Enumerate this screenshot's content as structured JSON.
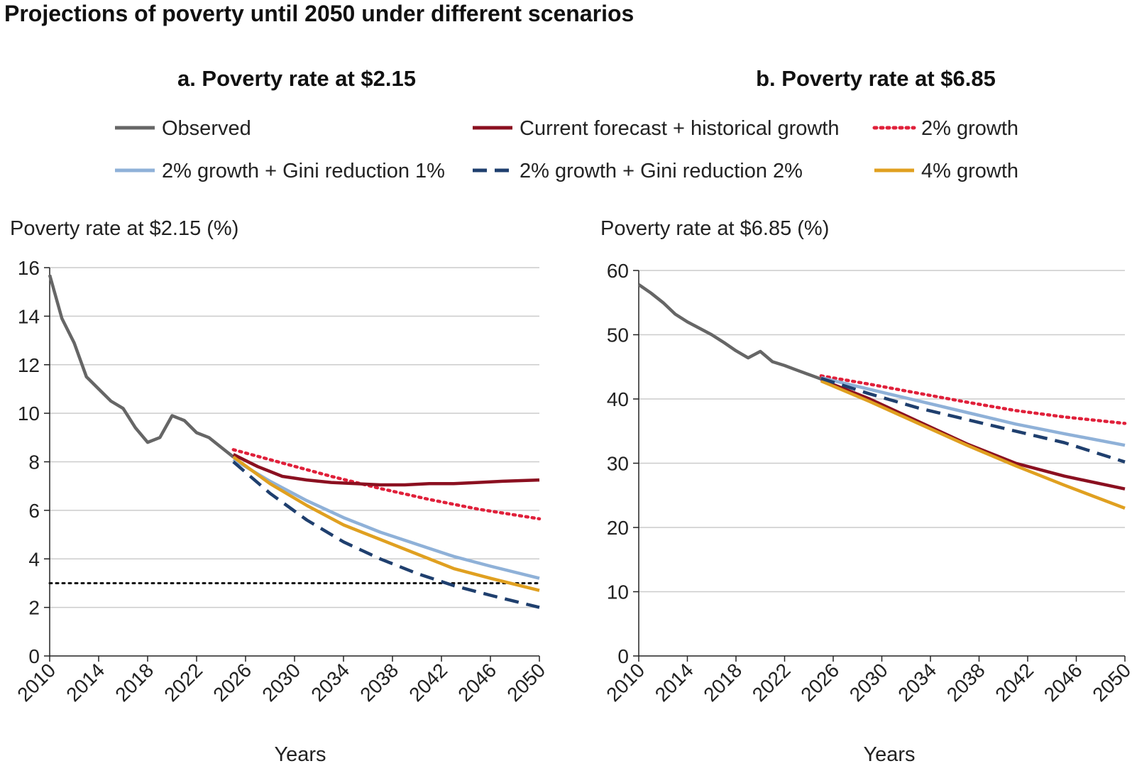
{
  "figure": {
    "title": "Projections of poverty until 2050 under different scenarios"
  },
  "legend": {
    "items": [
      {
        "key": "observed",
        "label": "Observed",
        "color": "#666666",
        "style": "solid"
      },
      {
        "key": "current",
        "label": "Current forecast + historical growth",
        "color": "#8b1020",
        "style": "solid"
      },
      {
        "key": "g2",
        "label": "2% growth",
        "color": "#e0203a",
        "style": "dotted"
      },
      {
        "key": "gini1",
        "label": "2% growth + Gini reduction 1%",
        "color": "#8fb1d8",
        "style": "solid"
      },
      {
        "key": "gini2",
        "label": "2% growth + Gini reduction 2%",
        "color": "#1f3f6e",
        "style": "dashed"
      },
      {
        "key": "g4",
        "label": "4% growth",
        "color": "#e0a020",
        "style": "solid"
      }
    ]
  },
  "chart_data": [
    {
      "type": "line",
      "title": "a. Poverty rate at $2.15",
      "ylabel": "Poverty rate at $2.15 (%)",
      "xlabel": "Years",
      "xlim": [
        2010,
        2050
      ],
      "ylim": [
        0,
        16
      ],
      "xticks": [
        "2010",
        "2014",
        "2018",
        "2022",
        "2026",
        "2030",
        "2034",
        "2038",
        "2042",
        "2046",
        "2050"
      ],
      "yticks": [
        "0",
        "2",
        "4",
        "6",
        "8",
        "10",
        "12",
        "14",
        "16"
      ],
      "grid": "horizontal",
      "reference_line": {
        "y": 3,
        "color": "#111111",
        "style": "dotted"
      },
      "series": [
        {
          "key": "observed",
          "name": "Observed",
          "x": [
            2010,
            2011,
            2012,
            2013,
            2014,
            2015,
            2016,
            2017,
            2018,
            2019,
            2020,
            2021,
            2022,
            2023,
            2024,
            2025
          ],
          "y": [
            15.7,
            13.9,
            12.9,
            11.5,
            11.0,
            10.5,
            10.2,
            9.4,
            8.8,
            9.0,
            9.9,
            9.7,
            9.2,
            9.0,
            8.6,
            8.2
          ]
        },
        {
          "key": "current",
          "name": "Current forecast + historical growth",
          "x": [
            2025,
            2027,
            2029,
            2031,
            2033,
            2035,
            2037,
            2039,
            2041,
            2043,
            2045,
            2047,
            2050
          ],
          "y": [
            8.3,
            7.8,
            7.4,
            7.25,
            7.15,
            7.1,
            7.05,
            7.05,
            7.1,
            7.1,
            7.15,
            7.2,
            7.25
          ]
        },
        {
          "key": "g2",
          "name": "2% growth",
          "x": [
            2025,
            2029,
            2033,
            2037,
            2041,
            2045,
            2050
          ],
          "y": [
            8.5,
            7.95,
            7.4,
            6.9,
            6.45,
            6.05,
            5.65
          ]
        },
        {
          "key": "gini1",
          "name": "2% growth + Gini reduction 1%",
          "x": [
            2025,
            2028,
            2031,
            2034,
            2037,
            2040,
            2043,
            2046,
            2050
          ],
          "y": [
            8.1,
            7.2,
            6.4,
            5.7,
            5.1,
            4.6,
            4.1,
            3.7,
            3.2
          ]
        },
        {
          "key": "gini2",
          "name": "2% growth + Gini reduction 2%",
          "x": [
            2025,
            2028,
            2031,
            2034,
            2037,
            2040,
            2043,
            2046,
            2050
          ],
          "y": [
            8.0,
            6.7,
            5.6,
            4.7,
            4.0,
            3.4,
            2.9,
            2.5,
            2.0
          ]
        },
        {
          "key": "g4",
          "name": "4% growth",
          "x": [
            2025,
            2028,
            2031,
            2034,
            2037,
            2040,
            2043,
            2046,
            2050
          ],
          "y": [
            8.2,
            7.1,
            6.2,
            5.4,
            4.8,
            4.2,
            3.6,
            3.2,
            2.7
          ]
        }
      ]
    },
    {
      "type": "line",
      "title": "b. Poverty rate at $6.85",
      "ylabel": "Poverty rate at $6.85 (%)",
      "xlabel": "Years",
      "xlim": [
        2010,
        2050
      ],
      "ylim": [
        0,
        60
      ],
      "xticks": [
        "2010",
        "2014",
        "2018",
        "2022",
        "2026",
        "2030",
        "2034",
        "2038",
        "2042",
        "2046",
        "2050"
      ],
      "yticks": [
        "0",
        "10",
        "20",
        "30",
        "40",
        "50",
        "60"
      ],
      "grid": "horizontal",
      "series": [
        {
          "key": "observed",
          "name": "Observed",
          "x": [
            2010,
            2011,
            2012,
            2013,
            2014,
            2015,
            2016,
            2017,
            2018,
            2019,
            2020,
            2021,
            2022,
            2023,
            2024,
            2025
          ],
          "y": [
            57.8,
            56.5,
            55.0,
            53.2,
            52.0,
            51.0,
            50.0,
            48.8,
            47.5,
            46.4,
            47.4,
            45.8,
            45.2,
            44.5,
            43.8,
            43.1
          ]
        },
        {
          "key": "current",
          "name": "Current forecast + historical growth",
          "x": [
            2025,
            2029,
            2033,
            2037,
            2041,
            2045,
            2050
          ],
          "y": [
            43.0,
            40.0,
            36.5,
            33.0,
            30.0,
            28.0,
            26.0
          ]
        },
        {
          "key": "g2",
          "name": "2% growth",
          "x": [
            2025,
            2029,
            2033,
            2037,
            2041,
            2045,
            2050
          ],
          "y": [
            43.6,
            42.3,
            40.9,
            39.5,
            38.2,
            37.2,
            36.2
          ]
        },
        {
          "key": "gini1",
          "name": "2% growth + Gini reduction 1%",
          "x": [
            2025,
            2029,
            2033,
            2037,
            2041,
            2045,
            2050
          ],
          "y": [
            43.3,
            41.5,
            39.7,
            37.9,
            36.1,
            34.6,
            32.8
          ]
        },
        {
          "key": "gini2",
          "name": "2% growth + Gini reduction 2%",
          "x": [
            2025,
            2029,
            2033,
            2037,
            2041,
            2045,
            2050
          ],
          "y": [
            43.2,
            40.8,
            38.6,
            36.8,
            35.0,
            33.2,
            30.2
          ]
        },
        {
          "key": "g4",
          "name": "4% growth",
          "x": [
            2025,
            2029,
            2033,
            2037,
            2041,
            2045,
            2050
          ],
          "y": [
            42.8,
            39.6,
            36.2,
            32.8,
            29.6,
            26.6,
            23.0
          ]
        }
      ]
    }
  ]
}
